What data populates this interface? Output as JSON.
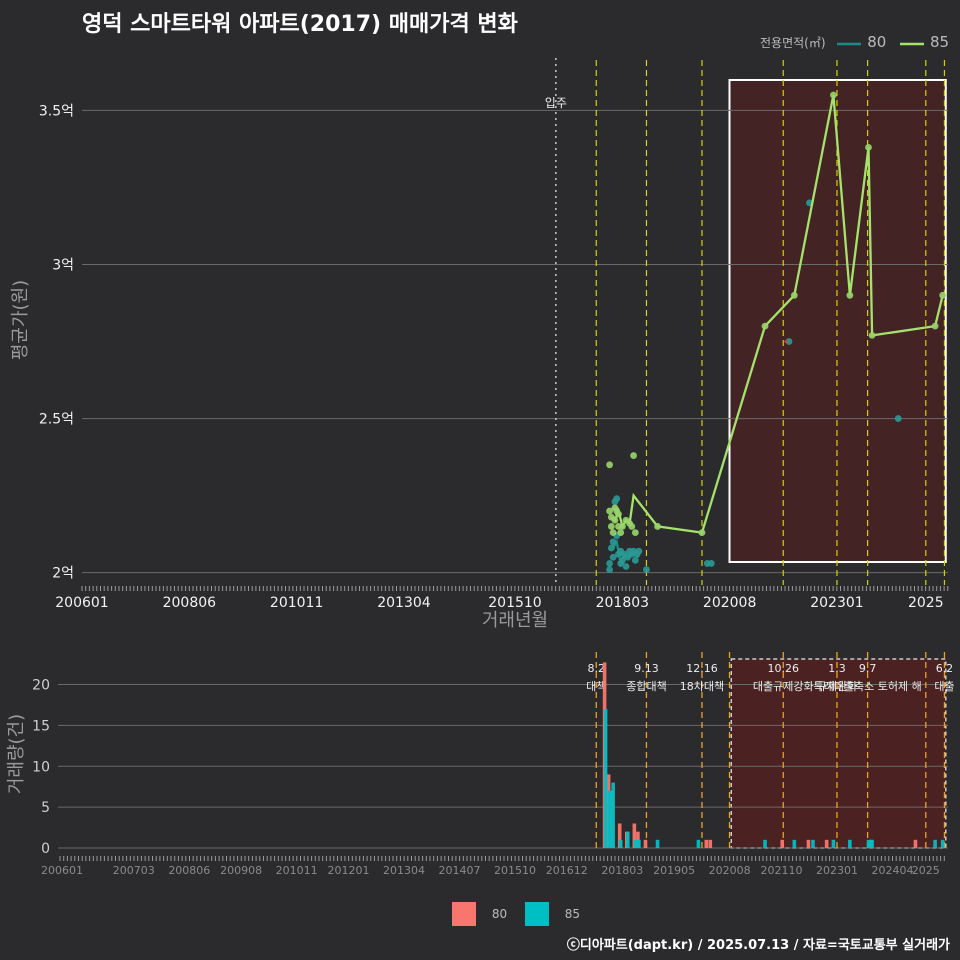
{
  "title": "영덕 스마트타워 아파트(2017) 매매가격 변화",
  "credit": "ⓒ디아파트(dapt.kr) / 2025.07.13 / 자료=국토교통부 실거래가",
  "legend": {
    "title": "전용면적(㎡)",
    "entries": [
      {
        "label": "80",
        "line_color": "#1e8a86",
        "bar_color": "#f8766d"
      },
      {
        "label": "85",
        "line_color": "#a5e26c",
        "bar_color": "#00bfc4"
      }
    ]
  },
  "chart_data": [
    {
      "type": "line",
      "title": "영덕 스마트타워 아파트(2017) 매매가격 변화",
      "xlabel": "거래년월",
      "ylabel": "평균가(원)",
      "x_ticks": [
        "200601",
        "200806",
        "201011",
        "201304",
        "201510",
        "201803",
        "202008",
        "202301",
        "2025"
      ],
      "y_ticks": [
        {
          "value": 2.0,
          "label": "2억"
        },
        {
          "value": 2.5,
          "label": "2.5억"
        },
        {
          "value": 3.0,
          "label": "3억"
        },
        {
          "value": 3.5,
          "label": "3.5억"
        }
      ],
      "xlim": [
        2006.0,
        2025.5
      ],
      "ylim": [
        1.96,
        3.67
      ],
      "move_in": {
        "x": 2016.67,
        "label": "입주"
      },
      "policy_lines": [
        2017.58,
        2018.71,
        2019.96,
        2021.79,
        2023.0,
        2023.69,
        2025.0,
        2025.42
      ],
      "highlight_range": [
        2020.58,
        2025.45
      ],
      "series": [
        {
          "name": "80",
          "line": [
            [
              2017.96,
              2.08
            ],
            [
              2018.04,
              2.1
            ],
            [
              2018.13,
              2.03
            ],
            [
              2018.21,
              2.06
            ],
            [
              2018.29,
              2.05
            ],
            [
              2018.38,
              2.06
            ],
            [
              2018.46,
              2.06
            ],
            [
              2018.54,
              2.05
            ]
          ],
          "points": [
            [
              2017.88,
              2.01
            ],
            [
              2017.88,
              2.03
            ],
            [
              2017.92,
              2.08
            ],
            [
              2017.96,
              2.05
            ],
            [
              2017.96,
              2.1
            ],
            [
              2018.0,
              2.23
            ],
            [
              2018.04,
              2.24
            ],
            [
              2018.04,
              2.12
            ],
            [
              2018.08,
              2.06
            ],
            [
              2018.13,
              2.03
            ],
            [
              2018.13,
              2.07
            ],
            [
              2018.17,
              2.04
            ],
            [
              2018.21,
              2.06
            ],
            [
              2018.25,
              2.02
            ],
            [
              2018.29,
              2.05
            ],
            [
              2018.33,
              2.07
            ],
            [
              2018.38,
              2.06
            ],
            [
              2018.42,
              2.07
            ],
            [
              2018.46,
              2.04
            ],
            [
              2018.5,
              2.06
            ],
            [
              2018.54,
              2.07
            ],
            [
              2018.71,
              2.01
            ],
            [
              2020.08,
              2.03
            ],
            [
              2020.17,
              2.03
            ],
            [
              2021.92,
              2.75
            ],
            [
              2022.38,
              3.2
            ],
            [
              2024.38,
              2.5
            ]
          ]
        },
        {
          "name": "85",
          "line": [
            [
              2017.92,
              2.18
            ],
            [
              2018.0,
              2.17
            ],
            [
              2018.08,
              2.2
            ],
            [
              2018.17,
              2.15
            ],
            [
              2018.25,
              2.17
            ],
            [
              2018.33,
              2.16
            ],
            [
              2018.42,
              2.25
            ],
            [
              2018.96,
              2.15
            ],
            [
              2019.96,
              2.13
            ],
            [
              2021.38,
              2.8
            ],
            [
              2022.04,
              2.9
            ],
            [
              2022.92,
              3.55
            ],
            [
              2023.29,
              2.9
            ],
            [
              2023.71,
              3.38
            ],
            [
              2023.79,
              2.77
            ],
            [
              2025.21,
              2.8
            ],
            [
              2025.38,
              2.9
            ]
          ],
          "points": [
            [
              2017.88,
              2.35
            ],
            [
              2017.88,
              2.2
            ],
            [
              2017.92,
              2.18
            ],
            [
              2017.92,
              2.15
            ],
            [
              2017.96,
              2.13
            ],
            [
              2018.0,
              2.17
            ],
            [
              2018.0,
              2.21
            ],
            [
              2018.04,
              2.2
            ],
            [
              2018.08,
              2.19
            ],
            [
              2018.08,
              2.15
            ],
            [
              2018.13,
              2.13
            ],
            [
              2018.17,
              2.15
            ],
            [
              2018.25,
              2.17
            ],
            [
              2018.33,
              2.16
            ],
            [
              2018.38,
              2.15
            ],
            [
              2018.42,
              2.38
            ],
            [
              2018.46,
              2.13
            ],
            [
              2018.96,
              2.15
            ],
            [
              2019.96,
              2.13
            ],
            [
              2021.38,
              2.8
            ],
            [
              2022.04,
              2.9
            ],
            [
              2022.92,
              3.55
            ],
            [
              2023.29,
              2.9
            ],
            [
              2023.71,
              3.38
            ],
            [
              2023.79,
              2.77
            ],
            [
              2025.21,
              2.8
            ],
            [
              2025.38,
              2.9
            ]
          ]
        }
      ]
    },
    {
      "type": "bar",
      "ylabel": "거래량(건)",
      "x_ticks": [
        "200601",
        "200703",
        "200806",
        "200908",
        "201011",
        "201201",
        "201304",
        "201407",
        "201510",
        "201612",
        "201803",
        "201905",
        "202008",
        "202110",
        "202301",
        "202404",
        "2025"
      ],
      "y_ticks": [
        0,
        5,
        10,
        15,
        20
      ],
      "xlim": [
        2006.0,
        2025.5
      ],
      "ylim": [
        0,
        23
      ],
      "highlight_range": [
        2020.62,
        2025.45
      ],
      "series": [
        {
          "name": "80",
          "bars": [
            [
              2017.79,
              22.7
            ],
            [
              2017.88,
              9
            ],
            [
              2017.96,
              7
            ],
            [
              2018.13,
              3
            ],
            [
              2018.29,
              2
            ],
            [
              2018.46,
              3
            ],
            [
              2018.54,
              2
            ],
            [
              2018.71,
              1
            ],
            [
              2020.08,
              1
            ],
            [
              2020.17,
              1
            ],
            [
              2021.79,
              1
            ],
            [
              2022.38,
              1
            ],
            [
              2022.79,
              1
            ],
            [
              2023.79,
              1
            ],
            [
              2024.79,
              1
            ]
          ]
        },
        {
          "name": "85",
          "bars": [
            [
              2017.79,
              17
            ],
            [
              2017.88,
              7
            ],
            [
              2017.96,
              8
            ],
            [
              2018.13,
              1
            ],
            [
              2018.29,
              2
            ],
            [
              2018.46,
              1
            ],
            [
              2018.54,
              1
            ],
            [
              2018.96,
              1
            ],
            [
              2019.88,
              1
            ],
            [
              2021.38,
              1
            ],
            [
              2022.04,
              1
            ],
            [
              2022.46,
              1
            ],
            [
              2022.92,
              1
            ],
            [
              2023.29,
              1
            ],
            [
              2023.71,
              1
            ],
            [
              2023.79,
              1
            ],
            [
              2025.21,
              1
            ],
            [
              2025.38,
              1
            ]
          ]
        }
      ],
      "policies": [
        {
          "x": 2017.58,
          "date": "8.2",
          "text": "대책"
        },
        {
          "x": 2018.71,
          "date": "9.13",
          "text": "종합대책"
        },
        {
          "x": 2019.96,
          "date": "12.16",
          "text": "18차대책"
        },
        {
          "x": 2020.58,
          "date": "",
          "text": ""
        },
        {
          "x": 2021.79,
          "date": "10.26",
          "text": "대출규제강화"
        },
        {
          "x": 2023.0,
          "date": "1.3",
          "text": "규제완화"
        },
        {
          "x": 2023.69,
          "date": "9.7",
          "text": "특례대출축소 토허제 해"
        },
        {
          "x": 2025.0,
          "date": "",
          "text": ""
        },
        {
          "x": 2025.42,
          "date": "6.2",
          "text": "대출"
        }
      ]
    }
  ]
}
